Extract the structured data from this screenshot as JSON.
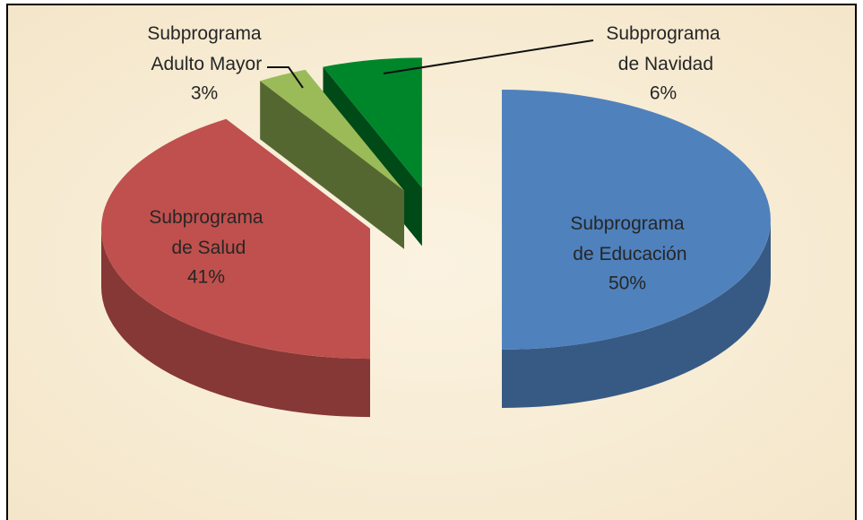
{
  "chart_data": {
    "type": "pie",
    "categories": [
      "Subprograma de Educación",
      "Subprograma de Salud",
      "Subprograma Adulto Mayor",
      "Subprograma de Navidad"
    ],
    "values": [
      50,
      41,
      3,
      6
    ],
    "value_labels": [
      "50%",
      "41%",
      "3%",
      "6%"
    ],
    "colors": [
      "#4f81bd",
      "#c0504d",
      "#9bbb59",
      "#00862a"
    ]
  }
}
